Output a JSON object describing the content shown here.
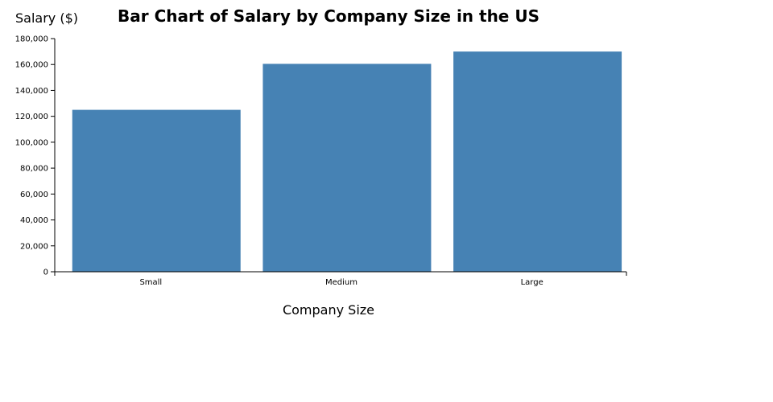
{
  "chart_data": {
    "type": "bar",
    "title": "Bar Chart of Salary by Company Size in the US",
    "xlabel": "Company Size",
    "ylabel": "Salary ($)",
    "categories": [
      "Small",
      "Medium",
      "Large"
    ],
    "values": [
      125000,
      160500,
      170000
    ],
    "ylim": [
      0,
      180000
    ],
    "yticks": [
      0,
      20000,
      40000,
      60000,
      80000,
      100000,
      120000,
      140000,
      160000,
      180000
    ],
    "ytick_labels": [
      "0",
      "20,000",
      "40,000",
      "60,000",
      "80,000",
      "100,000",
      "120,000",
      "140,000",
      "160,000",
      "180,000"
    ],
    "bar_color": "#4682b4",
    "grid": false,
    "legend": "none"
  }
}
